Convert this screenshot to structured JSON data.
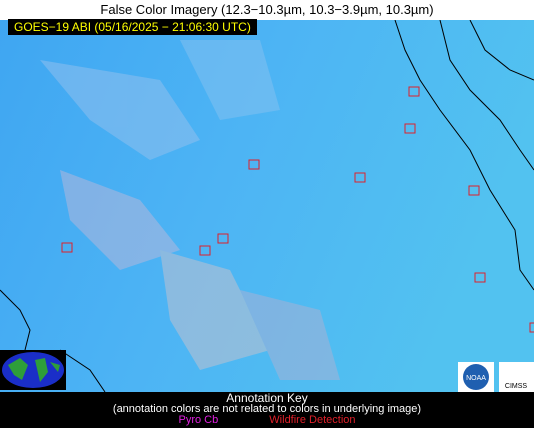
{
  "header": {
    "title": "False Color Imagery (12.3−10.3µm, 10.3−3.9µm, 10.3µm)"
  },
  "image": {
    "timestamp": "GOES−19 ABI (05/16/2025 − 21:06:30 UTC)"
  },
  "annotation_key": {
    "title": "Annotation Key",
    "note": "(annotation colors are not related to colors in underlying image)",
    "items": [
      "Pyro Cb",
      "Wildfire Detection"
    ]
  },
  "logos": [
    "NOAA",
    "CIMSS"
  ]
}
